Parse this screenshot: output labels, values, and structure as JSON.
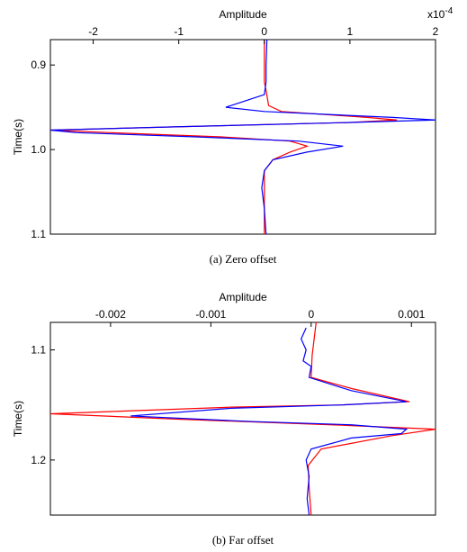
{
  "chart_data": [
    {
      "type": "line",
      "caption": "(a)  Zero offset",
      "xlabel": "Amplitude",
      "ylabel": "Time(s)",
      "x_multiplier": "x10",
      "x_multiplier_exp": "-4",
      "xlim": [
        -2.5,
        2
      ],
      "ylim": [
        0.87,
        1.1
      ],
      "x_axis_position": "top",
      "y_axis_reversed": true,
      "grid": false,
      "xticks": [
        -2,
        -1,
        0,
        1,
        2
      ],
      "xtick_labels": [
        "-2",
        "-1",
        "0",
        "1",
        "2"
      ],
      "yticks": [
        0.9,
        1.0,
        1.1
      ],
      "ytick_labels": [
        "0.9",
        "1.0",
        "1.1"
      ],
      "series": [
        {
          "color": "#ff0000",
          "points": [
            [
              0.0,
              0.87
            ],
            [
              0.0,
              0.9
            ],
            [
              0.0,
              0.92
            ],
            [
              0.02,
              0.93
            ],
            [
              0.05,
              0.948
            ],
            [
              0.2,
              0.955
            ],
            [
              1.2,
              0.962
            ],
            [
              1.55,
              0.965
            ],
            [
              1.0,
              0.968
            ],
            [
              -1.0,
              0.973
            ],
            [
              -2.5,
              0.977
            ],
            [
              -1.8,
              0.98
            ],
            [
              -0.5,
              0.985
            ],
            [
              0.3,
              0.99
            ],
            [
              0.5,
              0.996
            ],
            [
              0.3,
              1.003
            ],
            [
              0.1,
              1.012
            ],
            [
              0.0,
              1.025
            ],
            [
              0.0,
              1.04
            ],
            [
              0.0,
              1.06
            ],
            [
              0.0,
              1.08
            ],
            [
              0.0,
              1.1
            ]
          ]
        },
        {
          "color": "#0000ff",
          "points": [
            [
              0.03,
              0.87
            ],
            [
              0.02,
              0.9
            ],
            [
              0.02,
              0.92
            ],
            [
              0.0,
              0.935
            ],
            [
              -0.45,
              0.95
            ],
            [
              0.0,
              0.955
            ],
            [
              1.5,
              0.962
            ],
            [
              2.0,
              0.965
            ],
            [
              1.0,
              0.968
            ],
            [
              -1.0,
              0.973
            ],
            [
              -2.5,
              0.977
            ],
            [
              -2.2,
              0.98
            ],
            [
              -0.8,
              0.985
            ],
            [
              0.4,
              0.99
            ],
            [
              0.92,
              0.996
            ],
            [
              0.5,
              1.003
            ],
            [
              0.1,
              1.012
            ],
            [
              0.0,
              1.025
            ],
            [
              -0.03,
              1.045
            ],
            [
              0.0,
              1.07
            ],
            [
              0.02,
              1.1
            ]
          ]
        }
      ]
    },
    {
      "type": "line",
      "caption": "(b)  Far offset",
      "xlabel": "Amplitude",
      "ylabel": "Time(s)",
      "xlim": [
        -0.0026,
        0.00124
      ],
      "ylim": [
        1.075,
        1.25
      ],
      "x_axis_position": "top",
      "y_axis_reversed": true,
      "grid": false,
      "xticks": [
        -0.002,
        -0.001,
        0,
        0.001
      ],
      "xtick_labels": [
        "-0.002",
        "-0.001",
        "0",
        "0.001"
      ],
      "yticks": [
        1.1,
        1.2
      ],
      "ytick_labels": [
        "1.1",
        "1.2"
      ],
      "series": [
        {
          "color": "#ff0000",
          "points": [
            [
              5e-05,
              1.075
            ],
            [
              3e-05,
              1.09
            ],
            [
              1e-05,
              1.105
            ],
            [
              0.0,
              1.125
            ],
            [
              0.0004,
              1.135
            ],
            [
              0.00098,
              1.147
            ],
            [
              0.0003,
              1.15
            ],
            [
              -0.0008,
              1.152
            ],
            [
              -0.0026,
              1.158
            ],
            [
              -0.0013,
              1.163
            ],
            [
              0.0002,
              1.168
            ],
            [
              0.00124,
              1.172
            ],
            [
              0.0008,
              1.178
            ],
            [
              0.0001,
              1.19
            ],
            [
              -3e-05,
              1.205
            ],
            [
              -2e-05,
              1.225
            ],
            [
              0.0,
              1.25
            ]
          ]
        },
        {
          "color": "#0000ff",
          "points": [
            [
              -5e-05,
              1.08
            ],
            [
              -0.0001,
              1.09
            ],
            [
              -5e-05,
              1.1
            ],
            [
              -8e-05,
              1.11
            ],
            [
              0.0,
              1.115
            ],
            [
              -2e-05,
              1.125
            ],
            [
              0.0004,
              1.137
            ],
            [
              0.00095,
              1.147
            ],
            [
              0.0003,
              1.15
            ],
            [
              -0.0008,
              1.153
            ],
            [
              -0.0018,
              1.16
            ],
            [
              -0.0006,
              1.165
            ],
            [
              0.0004,
              1.168
            ],
            [
              0.00095,
              1.172
            ],
            [
              0.0009,
              1.176
            ],
            [
              0.0004,
              1.18
            ],
            [
              0.0,
              1.19
            ],
            [
              -5e-05,
              1.2
            ],
            [
              -2e-05,
              1.215
            ],
            [
              -4e-05,
              1.235
            ],
            [
              -2e-05,
              1.25
            ]
          ]
        }
      ]
    }
  ]
}
